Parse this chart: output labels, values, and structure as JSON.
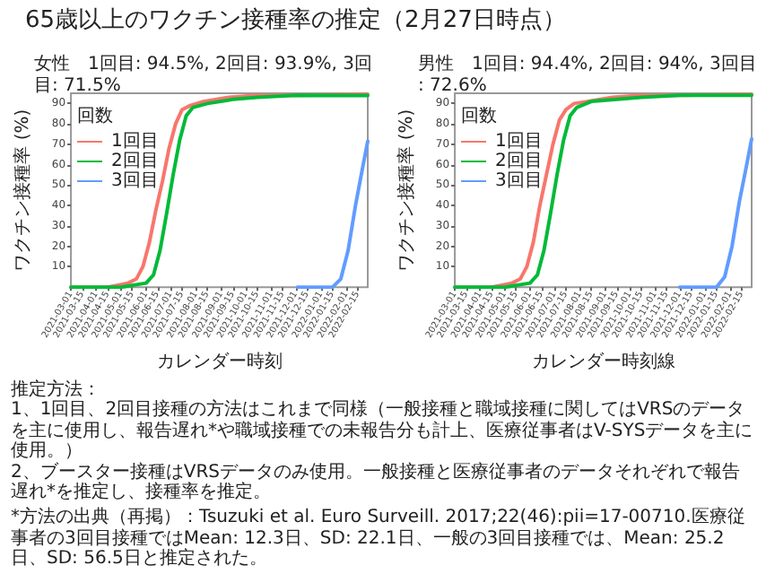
{
  "chart_data": [
    {
      "type": "other",
      "title": "65歳以上のワクチン接種率の推定（2月27日時点）"
    },
    {
      "type": "line",
      "title": "女性　1回目: 94.5%, 2回目: 93.9%, 3回目: 71.5%",
      "xlabel": "カレンダー時刻",
      "ylabel": "ワクチン接種率 (%)",
      "legend_title": "回数",
      "legend": "top left",
      "grid": false,
      "marker": "none",
      "line_style": "solid",
      "xlim": [
        "2021-03-01",
        "2022-02-27"
      ],
      "xticks": [
        "2021-03-01",
        "2021-03-15",
        "2021-04-01",
        "2021-04-15",
        "2021-05-01",
        "2021-05-15",
        "2021-06-01",
        "2021-06-15",
        "2021-07-01",
        "2021-07-15",
        "2021-08-01",
        "2021-08-15",
        "2021-09-01",
        "2021-09-15",
        "2021-10-01",
        "2021-10-15",
        "2021-11-01",
        "2021-11-15",
        "2021-12-01",
        "2021-12-15",
        "2022-01-01",
        "2022-01-15",
        "2022-02-01",
        "2022-02-15"
      ],
      "ylim": [
        0,
        95
      ],
      "yticks": [
        10,
        20,
        30,
        40,
        50,
        60,
        70,
        80,
        90
      ],
      "series": [
        {
          "name": "1回目",
          "color": "#f8766d",
          "x": [
            "2021-03-01",
            "2021-04-15",
            "2021-05-10",
            "2021-05-20",
            "2021-05-28",
            "2021-06-05",
            "2021-06-13",
            "2021-06-21",
            "2021-06-29",
            "2021-07-07",
            "2021-07-15",
            "2021-07-25",
            "2021-08-10",
            "2021-09-10",
            "2021-10-15",
            "2021-12-01",
            "2022-02-27"
          ],
          "values": [
            0,
            0,
            2,
            4,
            10,
            22,
            38,
            52,
            68,
            80,
            87,
            89,
            91,
            93,
            94,
            94,
            94.5
          ]
        },
        {
          "name": "2回目",
          "color": "#00ba38",
          "x": [
            "2021-03-01",
            "2021-05-01",
            "2021-06-01",
            "2021-06-10",
            "2021-06-18",
            "2021-06-26",
            "2021-07-04",
            "2021-07-12",
            "2021-07-20",
            "2021-07-28",
            "2021-08-15",
            "2021-09-15",
            "2021-10-15",
            "2021-12-01",
            "2022-02-27"
          ],
          "values": [
            0,
            0,
            2,
            6,
            18,
            36,
            55,
            72,
            84,
            88,
            90,
            92,
            93,
            94,
            93.9
          ]
        },
        {
          "name": "3回目",
          "color": "#619cff",
          "x": [
            "2021-12-03",
            "2022-01-15",
            "2022-01-25",
            "2022-02-03",
            "2022-02-12",
            "2022-02-20",
            "2022-02-27"
          ],
          "values": [
            0,
            0,
            4,
            18,
            40,
            57,
            71.5
          ]
        }
      ]
    },
    {
      "type": "line",
      "title": "男性　1回目: 94.4%, 2回目: 94%, 3回目: 72.6%",
      "xlabel": "カレンダー時刻線",
      "ylabel": "ワクチン接種率 (%)",
      "legend_title": "回数",
      "legend": "top left",
      "grid": false,
      "marker": "none",
      "line_style": "solid",
      "xlim": [
        "2021-03-01",
        "2022-02-27"
      ],
      "xticks": [
        "2021-03-01",
        "2021-03-15",
        "2021-04-01",
        "2021-04-15",
        "2021-05-01",
        "2021-05-15",
        "2021-06-01",
        "2021-06-15",
        "2021-07-01",
        "2021-07-15",
        "2021-08-01",
        "2021-08-15",
        "2021-09-01",
        "2021-09-15",
        "2021-10-01",
        "2021-10-15",
        "2021-11-01",
        "2021-11-15",
        "2021-12-01",
        "2021-12-15",
        "2022-01-01",
        "2022-01-15",
        "2022-02-01",
        "2022-02-15"
      ],
      "ylim": [
        0,
        95
      ],
      "yticks": [
        10,
        20,
        30,
        40,
        50,
        60,
        70,
        80,
        90
      ],
      "series": [
        {
          "name": "1回目",
          "color": "#f8766d",
          "x": [
            "2021-03-01",
            "2021-04-15",
            "2021-05-10",
            "2021-05-20",
            "2021-05-28",
            "2021-06-05",
            "2021-06-13",
            "2021-06-21",
            "2021-06-29",
            "2021-07-07",
            "2021-07-15",
            "2021-07-25",
            "2021-08-10",
            "2021-09-10",
            "2021-10-15",
            "2021-12-01",
            "2022-02-27"
          ],
          "values": [
            0,
            0,
            2,
            4,
            10,
            22,
            40,
            55,
            70,
            82,
            87,
            90,
            91,
            93,
            94,
            94,
            94.4
          ]
        },
        {
          "name": "2回目",
          "color": "#00ba38",
          "x": [
            "2021-03-01",
            "2021-05-01",
            "2021-06-01",
            "2021-06-10",
            "2021-06-18",
            "2021-06-26",
            "2021-07-04",
            "2021-07-12",
            "2021-07-20",
            "2021-07-28",
            "2021-08-15",
            "2021-09-15",
            "2021-10-15",
            "2021-12-01",
            "2022-02-27"
          ],
          "values": [
            0,
            0,
            2,
            6,
            18,
            36,
            55,
            72,
            84,
            88,
            91,
            92,
            93,
            94,
            94
          ]
        },
        {
          "name": "3回目",
          "color": "#619cff",
          "x": [
            "2021-12-01",
            "2022-01-15",
            "2022-01-25",
            "2022-02-03",
            "2022-02-12",
            "2022-02-20",
            "2022-02-27"
          ],
          "values": [
            0,
            0,
            5,
            20,
            42,
            58,
            72.6
          ]
        }
      ]
    },
    {
      "type": "other",
      "annotations": [
        "推定方法：",
        "1、1回目、2回目接種の方法はこれまで同様（一般接種と職域接種に関してはVRSのデータを主に使用し、報告遅れ*や職域接種での未報告分も計上、医療従事者はV-SYSデータを主に使用。）",
        "2、ブースター接種はVRSデータのみ使用。一般接種と医療従事者のデータそれぞれで報告遅れ*を推定し、接種率を推定。",
        "*方法の出典（再掲）：Tsuzuki et al. Euro Surveill. 2017;22(46):pii=17-00710.医療従事者の3回目接種ではMean: 12.3日、SD: 22.1日、一般の3回目接種では、Mean: 25.2日、SD: 56.5日と推定された。"
      ]
    }
  ]
}
